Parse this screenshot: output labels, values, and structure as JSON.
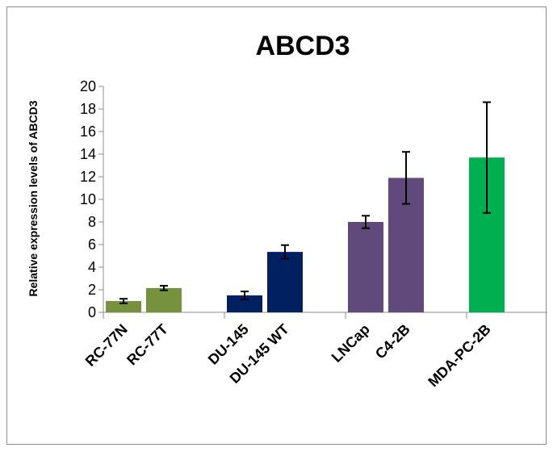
{
  "chart_data": {
    "type": "bar",
    "title": "ABCD3",
    "xlabel": "",
    "ylabel": "Relative expression levels of ABCD3",
    "ylim": [
      0,
      20
    ],
    "yticks": [
      0,
      2,
      4,
      6,
      8,
      10,
      12,
      14,
      16,
      18,
      20
    ],
    "grid": false,
    "legend": "none",
    "groups": [
      {
        "bars": [
          {
            "category": "RC-77N",
            "value": 1.0,
            "error": 0.2,
            "color": "#76923C"
          },
          {
            "category": "RC-77T",
            "value": 2.15,
            "error": 0.2,
            "color": "#76923C"
          }
        ]
      },
      {
        "bars": [
          {
            "category": "DU-145",
            "value": 1.5,
            "error": 0.35,
            "color": "#002060"
          },
          {
            "category": "DU-145 WT",
            "value": 5.35,
            "error": 0.6,
            "color": "#002060"
          }
        ]
      },
      {
        "bars": [
          {
            "category": "LNCap",
            "value": 8.0,
            "error": 0.55,
            "color": "#604A7B"
          },
          {
            "category": "C4-2B",
            "value": 11.9,
            "error": 2.3,
            "color": "#604A7B"
          }
        ]
      },
      {
        "bars": [
          {
            "category": "MDA-PC-2B",
            "value": 13.7,
            "error": 4.9,
            "color": "#00B050"
          }
        ]
      }
    ]
  }
}
